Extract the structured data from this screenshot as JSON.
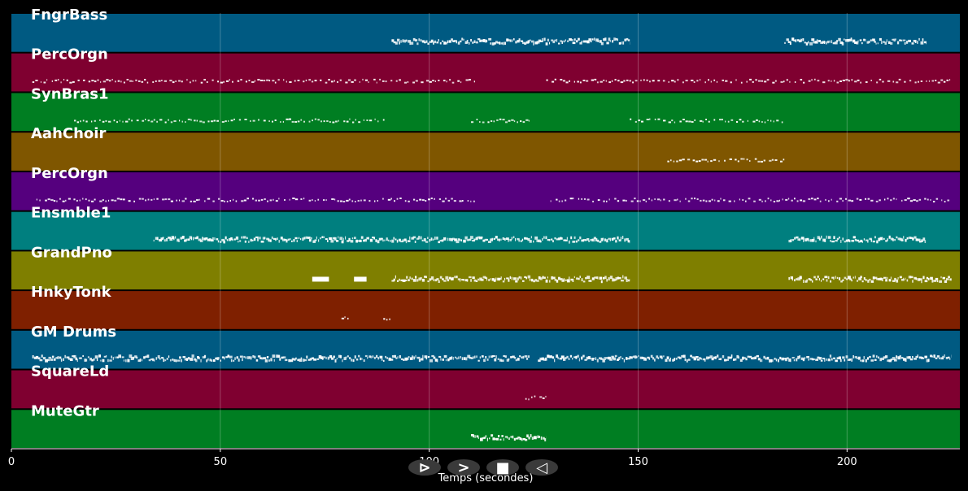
{
  "chart_data": {
    "type": "piano-roll",
    "xlabel": "Temps (secondes)",
    "xlim": [
      0,
      227
    ],
    "xticks": [
      0,
      50,
      100,
      150,
      200
    ],
    "grid": true,
    "tracks": [
      {
        "name": "FngrBass",
        "color": "#005a82",
        "note_color": "#ffffff",
        "segments": [
          [
            91,
            148,
            "dense"
          ],
          [
            185,
            219,
            "dense"
          ]
        ]
      },
      {
        "name": "PercOrgn",
        "color": "#7f0030",
        "note_color": "#ffffff",
        "segments": [
          [
            5,
            111,
            "sparse"
          ],
          [
            128,
            225,
            "sparse"
          ]
        ]
      },
      {
        "name": "SynBras1",
        "color": "#007e22",
        "note_color": "#ffffff",
        "segments": [
          [
            15,
            90,
            "sparse"
          ],
          [
            110,
            124,
            "sparse"
          ],
          [
            148,
            185,
            "sparse"
          ]
        ]
      },
      {
        "name": "AahChoir",
        "color": "#7f5600",
        "note_color": "#ffffff",
        "segments": [
          [
            157,
            185,
            "sparse"
          ]
        ]
      },
      {
        "name": "PercOrgn",
        "color": "#55007e",
        "note_color": "#ffffff",
        "segments": [
          [
            6,
            111,
            "sparse"
          ],
          [
            129,
            225,
            "sparse"
          ]
        ]
      },
      {
        "name": "Ensmble1",
        "color": "#007f7f",
        "note_color": "#ffffff",
        "segments": [
          [
            34,
            148,
            "dense"
          ],
          [
            186,
            219,
            "dense"
          ]
        ]
      },
      {
        "name": "GrandPno",
        "color": "#7f7f00",
        "note_color": "#ffffff",
        "segments": [
          [
            72,
            76,
            "block"
          ],
          [
            82,
            85,
            "block"
          ],
          [
            91,
            148,
            "dense"
          ],
          [
            186,
            225,
            "dense"
          ]
        ]
      },
      {
        "name": "HnkyTonk",
        "color": "#7f2000",
        "note_color": "#ffffff",
        "segments": [
          [
            79,
            81,
            "sparse"
          ],
          [
            89,
            91,
            "sparse"
          ]
        ]
      },
      {
        "name": "GM Drums",
        "color": "#005a82",
        "note_color": "#ffffff",
        "segments": [
          [
            5,
            124,
            "dense"
          ],
          [
            126,
            225,
            "dense"
          ]
        ]
      },
      {
        "name": "SquareLd",
        "color": "#7f0030",
        "note_color": "#ffffff",
        "segments": [
          [
            123,
            128,
            "sparse"
          ]
        ]
      },
      {
        "name": "MuteGtr",
        "color": "#007e22",
        "note_color": "#ffffff",
        "segments": [
          [
            110,
            128,
            "dense"
          ]
        ]
      }
    ]
  },
  "controls": [
    {
      "name": "play-button",
      "glyph": "⊳"
    },
    {
      "name": "forward-button",
      "glyph": ">"
    },
    {
      "name": "stop-button",
      "glyph": "■"
    },
    {
      "name": "rewind-button",
      "glyph": "◁"
    }
  ]
}
